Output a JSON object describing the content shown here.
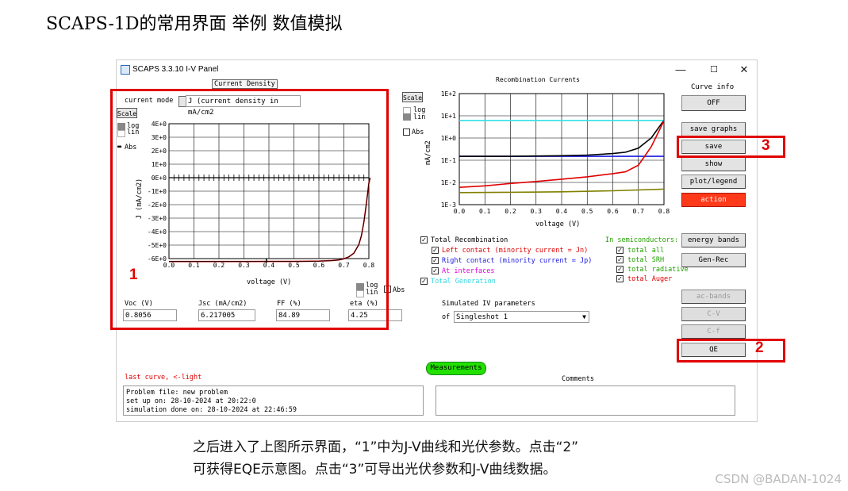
{
  "slide": {
    "title": "SCAPS-1D的常用界面  举例  数值模拟",
    "caption_line1": "之后进入了上图所示界面，“1”中为J-V曲线和光伏参数。点击“2”",
    "caption_line2": "可获得EQE示意图。点击“3”可导出光伏参数和J-V曲线数据。",
    "watermark": "CSDN @BADAN-1024"
  },
  "window": {
    "title": "SCAPS 3.3.10 I-V Panel",
    "minimize": "—",
    "maximize": "☐",
    "close": "✕"
  },
  "jv_panel": {
    "header": "Current Density",
    "current_mode_label": "current mode",
    "current_mode_value": "J (current density in mA/cm2",
    "scale_label": "Scale",
    "log_label": "log",
    "lin_label": "lin",
    "abs_label": "Abs",
    "log_label2": "log",
    "lin_label2": "lin",
    "abs_label2": "Abs"
  },
  "jv_chart": {
    "ylabel": "J (mA/cm2)",
    "xlabel": "voltage (V)",
    "yticks": [
      "4E+0",
      "3E+0",
      "2E+0",
      "1E+0",
      "0E+0",
      "-1E+0",
      "-2E+0",
      "-3E+0",
      "-4E+0",
      "-5E+0",
      "-6E+0"
    ],
    "xticks": [
      "0.0",
      "0.1",
      "0.2",
      "0.3",
      "0.4",
      "0.5",
      "0.6",
      "0.7",
      "0.8"
    ]
  },
  "params": {
    "voc_label": "Voc (V)",
    "voc_value": "0.8056",
    "jsc_label": "Jsc (mA/cm2)",
    "jsc_value": "6.217005",
    "ff_label": "FF  (%)",
    "ff_value": "84.89",
    "eta_label": "eta (%)",
    "eta_value": "4.25"
  },
  "recomb_panel": {
    "title": "Recombination Currents",
    "scale_label": "Scale",
    "log_label": "log",
    "lin_label": "lin",
    "abs_label": "Abs"
  },
  "recomb_chart": {
    "ylabel": "mA/cm2",
    "xlabel": "voltage (V)",
    "yticks": [
      "1E+2",
      "1E+1",
      "1E+0",
      "1E-1",
      "1E-2",
      "1E-3"
    ],
    "xticks": [
      "0.0",
      "0.1",
      "0.2",
      "0.3",
      "0.4",
      "0.5",
      "0.6",
      "0.7",
      "0.8"
    ]
  },
  "chart_data": [
    {
      "type": "line",
      "xlabel": "voltage (V)",
      "ylabel": "J (mA/cm2)",
      "xlim": [
        0,
        0.8
      ],
      "ylim": [
        -6,
        4
      ],
      "grid": true,
      "series": [
        {
          "color": "#e00000",
          "x": [
            0.0,
            0.1,
            0.2,
            0.3,
            0.4,
            0.5,
            0.6,
            0.65,
            0.68,
            0.7,
            0.72,
            0.74,
            0.76,
            0.77,
            0.78,
            0.79,
            0.8,
            0.805
          ],
          "y": [
            -6.217,
            -6.217,
            -6.216,
            -6.215,
            -6.214,
            -6.21,
            -6.19,
            -6.15,
            -6.1,
            -6.02,
            -5.87,
            -5.6,
            -4.95,
            -4.3,
            -3.3,
            -1.9,
            -0.4,
            0.0
          ]
        },
        {
          "color": "#000000",
          "x": [
            0.0,
            0.1,
            0.2,
            0.3,
            0.4,
            0.5,
            0.6,
            0.65,
            0.68,
            0.7,
            0.72,
            0.74,
            0.76,
            0.77,
            0.78,
            0.79,
            0.8,
            0.805
          ],
          "y": [
            -6.217,
            -6.217,
            -6.216,
            -6.215,
            -6.214,
            -6.21,
            -6.19,
            -6.15,
            -6.1,
            -6.02,
            -5.87,
            -5.6,
            -4.95,
            -4.3,
            -3.3,
            -1.9,
            -0.4,
            0.0
          ]
        }
      ]
    },
    {
      "type": "line",
      "title": "Recombination Currents",
      "xlabel": "voltage (V)",
      "ylabel": "mA/cm2",
      "yscale": "log",
      "xlim": [
        0,
        0.8
      ],
      "ylim": [
        0.001,
        100
      ],
      "grid": true,
      "series": [
        {
          "name": "Total Generation",
          "color": "#33e0e8",
          "x": [
            0,
            0.2,
            0.4,
            0.6,
            0.8
          ],
          "y": [
            6.2,
            6.2,
            6.2,
            6.2,
            6.2
          ]
        },
        {
          "name": "Right contact (minority current = Jp)",
          "color": "#1a1ae0",
          "x": [
            0,
            0.2,
            0.4,
            0.6,
            0.8
          ],
          "y": [
            0.15,
            0.15,
            0.15,
            0.15,
            0.15
          ]
        },
        {
          "name": "Total Recombination",
          "color": "#000000",
          "x": [
            0,
            0.2,
            0.4,
            0.5,
            0.6,
            0.65,
            0.7,
            0.75,
            0.78,
            0.8
          ],
          "y": [
            0.15,
            0.15,
            0.16,
            0.17,
            0.2,
            0.23,
            0.35,
            1.0,
            3.0,
            6.2
          ]
        },
        {
          "name": "total Auger",
          "color": "#e00000",
          "x": [
            0,
            0.1,
            0.2,
            0.3,
            0.4,
            0.5,
            0.6,
            0.65,
            0.7,
            0.75,
            0.78,
            0.8
          ],
          "y": [
            0.006,
            0.007,
            0.009,
            0.011,
            0.014,
            0.018,
            0.025,
            0.03,
            0.06,
            0.4,
            2.0,
            6.0
          ]
        },
        {
          "name": "total SRH",
          "color": "#808000",
          "x": [
            0,
            0.2,
            0.4,
            0.6,
            0.8
          ],
          "y": [
            0.0035,
            0.0036,
            0.0038,
            0.0042,
            0.005
          ]
        }
      ]
    }
  ],
  "legend": {
    "total_recombination": "Total Recombination",
    "left_contact": "Left contact (minority current = Jn)",
    "right_contact": "Right contact (minority current = Jp)",
    "at_interfaces": "At interfaces",
    "total_generation": "Total Generation",
    "in_semiconductors": "In semiconductors:",
    "total_all": "total all",
    "total_srh": "total SRH",
    "total_radiative": "total radiative",
    "total_auger": "total Auger"
  },
  "colors": {
    "legend_black": "#000000",
    "legend_red": "#e00000",
    "legend_blue": "#1a1ae0",
    "legend_magenta": "#e000e0",
    "legend_cyan": "#33d8e0",
    "legend_green": "#22a000",
    "highlight": "#e00000"
  },
  "simulated": {
    "label": "Simulated IV parameters",
    "of_label": "of",
    "select_value": "Singleshot 1",
    "arrow": "▼"
  },
  "right_buttons": {
    "curve_info": "Curve info",
    "off": "OFF",
    "save_graphs": "save graphs",
    "save": "save",
    "show": "show",
    "plot_legend": "plot/legend",
    "action": "action",
    "energy_bands": "energy bands",
    "gen_rec": "Gen-Rec",
    "ac_bands": "ac-bands",
    "c_v": "C-V",
    "c_f": "C-f",
    "qe": "QE"
  },
  "bottom": {
    "measurements": "Measurements",
    "last_curve": "last curve, <-light",
    "comments_label": "Comments",
    "info_line1": "Problem file: new problem",
    "info_line2": "set up on: 28-10-2024 at 20:22:0",
    "info_line3": "simulation done on: 28-10-2024 at 22:46:59"
  },
  "annotations": {
    "n1": "1",
    "n2": "2",
    "n3": "3"
  }
}
